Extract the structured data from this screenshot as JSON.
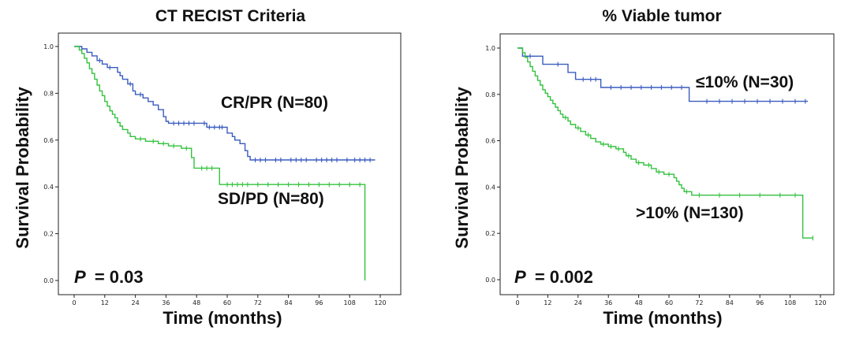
{
  "chart_data": [
    {
      "type": "line",
      "subtype": "kaplan-meier",
      "title": "CT RECIST Criteria",
      "xlabel": "Time (months)",
      "ylabel": "Survival Probability",
      "xlim": [
        0,
        120
      ],
      "ylim": [
        0,
        1.0
      ],
      "xticks": [
        "0",
        "12",
        "24",
        "36",
        "48",
        "60",
        "72",
        "84",
        "96",
        "108",
        "120"
      ],
      "yticks": [
        "0.0",
        "0.2",
        "0.4",
        "0.6",
        "0.8",
        "1.0"
      ],
      "p_label": "P",
      "p_value": "= 0.03",
      "grid": false,
      "series": [
        {
          "name": "CR/PR (N=80)",
          "color": "#3a5bbf",
          "label_position": "upper-right",
          "steps": [
            [
              0,
              1.0
            ],
            [
              3,
              0.99
            ],
            [
              5,
              0.975
            ],
            [
              7,
              0.96
            ],
            [
              9,
              0.94
            ],
            [
              11,
              0.925
            ],
            [
              13,
              0.91
            ],
            [
              17,
              0.89
            ],
            [
              18,
              0.875
            ],
            [
              19,
              0.86
            ],
            [
              21,
              0.84
            ],
            [
              23,
              0.81
            ],
            [
              24,
              0.795
            ],
            [
              27,
              0.78
            ],
            [
              29,
              0.765
            ],
            [
              31,
              0.75
            ],
            [
              33,
              0.73
            ],
            [
              35,
              0.7
            ],
            [
              36,
              0.68
            ],
            [
              37,
              0.672
            ],
            [
              52,
              0.655
            ],
            [
              60,
              0.63
            ],
            [
              62,
              0.615
            ],
            [
              63,
              0.6
            ],
            [
              65,
              0.585
            ],
            [
              67,
              0.555
            ],
            [
              68,
              0.53
            ],
            [
              69,
              0.515
            ],
            [
              118,
              0.515
            ]
          ],
          "censor": [
            10,
            14,
            22,
            26,
            39,
            41,
            43,
            45,
            47,
            51,
            53,
            55,
            57,
            58,
            71,
            73,
            75,
            79,
            81,
            85,
            87,
            89,
            91,
            95,
            97,
            99,
            101,
            103,
            107,
            110,
            112,
            114,
            116
          ]
        },
        {
          "name": "SD/PD (N=80)",
          "color": "#33c23e",
          "label_position": "lower-right",
          "steps": [
            [
              0,
              1.0
            ],
            [
              2,
              0.985
            ],
            [
              3,
              0.97
            ],
            [
              4,
              0.95
            ],
            [
              5,
              0.93
            ],
            [
              6,
              0.905
            ],
            [
              7,
              0.885
            ],
            [
              8,
              0.86
            ],
            [
              9,
              0.835
            ],
            [
              10,
              0.81
            ],
            [
              11,
              0.79
            ],
            [
              12,
              0.765
            ],
            [
              13,
              0.745
            ],
            [
              14,
              0.725
            ],
            [
              15,
              0.71
            ],
            [
              16,
              0.695
            ],
            [
              17,
              0.675
            ],
            [
              18,
              0.66
            ],
            [
              19,
              0.645
            ],
            [
              21,
              0.63
            ],
            [
              22,
              0.615
            ],
            [
              24,
              0.605
            ],
            [
              28,
              0.595
            ],
            [
              33,
              0.585
            ],
            [
              37,
              0.575
            ],
            [
              42,
              0.565
            ],
            [
              46,
              0.525
            ],
            [
              47,
              0.48
            ],
            [
              57,
              0.41
            ],
            [
              114,
              0.41
            ],
            [
              114,
              0.0
            ]
          ],
          "censor": [
            26,
            31,
            35,
            39,
            44,
            50,
            52,
            54,
            60,
            62,
            64,
            66,
            68,
            72,
            76,
            80,
            84,
            88,
            92,
            96,
            100,
            104,
            108,
            112
          ]
        }
      ]
    },
    {
      "type": "line",
      "subtype": "kaplan-meier",
      "title": "% Viable tumor",
      "xlabel": "Time (months)",
      "ylabel": "Survival Probability",
      "xlim": [
        0,
        120
      ],
      "ylim": [
        0,
        1.0
      ],
      "xticks": [
        "0",
        "12",
        "24",
        "36",
        "48",
        "60",
        "72",
        "84",
        "96",
        "108",
        "120"
      ],
      "yticks": [
        "0.0",
        "0.2",
        "0.4",
        "0.6",
        "0.8",
        "1.0"
      ],
      "p_label": "P",
      "p_value": "= 0.002",
      "grid": false,
      "series": [
        {
          "name": "≤10% (N=30)",
          "color": "#3a5bbf",
          "label_position": "upper-right",
          "steps": [
            [
              0,
              1.0
            ],
            [
              2,
              0.965
            ],
            [
              10,
              0.93
            ],
            [
              20,
              0.895
            ],
            [
              23,
              0.865
            ],
            [
              33,
              0.83
            ],
            [
              68,
              0.77
            ],
            [
              115,
              0.77
            ]
          ],
          "censor": [
            5,
            16,
            26,
            29,
            31,
            37,
            41,
            45,
            49,
            53,
            57,
            61,
            65,
            75,
            80,
            85,
            90,
            95,
            100,
            105,
            110,
            114
          ]
        },
        {
          "name": ">10% (N=130)",
          "color": "#33c23e",
          "label_position": "lower-right",
          "steps": [
            [
              0,
              1.0
            ],
            [
              2,
              0.98
            ],
            [
              3,
              0.96
            ],
            [
              4,
              0.94
            ],
            [
              5,
              0.92
            ],
            [
              6,
              0.9
            ],
            [
              7,
              0.88
            ],
            [
              8,
              0.86
            ],
            [
              9,
              0.84
            ],
            [
              10,
              0.82
            ],
            [
              11,
              0.805
            ],
            [
              12,
              0.79
            ],
            [
              13,
              0.775
            ],
            [
              14,
              0.76
            ],
            [
              15,
              0.745
            ],
            [
              16,
              0.73
            ],
            [
              17,
              0.715
            ],
            [
              18,
              0.7
            ],
            [
              20,
              0.685
            ],
            [
              21,
              0.67
            ],
            [
              23,
              0.655
            ],
            [
              25,
              0.64
            ],
            [
              27,
              0.625
            ],
            [
              29,
              0.61
            ],
            [
              31,
              0.595
            ],
            [
              33,
              0.585
            ],
            [
              36,
              0.575
            ],
            [
              39,
              0.565
            ],
            [
              42,
              0.55
            ],
            [
              43,
              0.535
            ],
            [
              45,
              0.52
            ],
            [
              47,
              0.505
            ],
            [
              50,
              0.495
            ],
            [
              53,
              0.48
            ],
            [
              55,
              0.465
            ],
            [
              58,
              0.455
            ],
            [
              62,
              0.44
            ],
            [
              63,
              0.425
            ],
            [
              64,
              0.41
            ],
            [
              65,
              0.395
            ],
            [
              66,
              0.38
            ],
            [
              69,
              0.365
            ],
            [
              113,
              0.365
            ],
            [
              113,
              0.18
            ],
            [
              117,
              0.18
            ]
          ],
          "censor": [
            19,
            24,
            28,
            34,
            37,
            40,
            44,
            48,
            52,
            56,
            60,
            67,
            72,
            80,
            88,
            96,
            104,
            110,
            117
          ]
        }
      ]
    }
  ]
}
